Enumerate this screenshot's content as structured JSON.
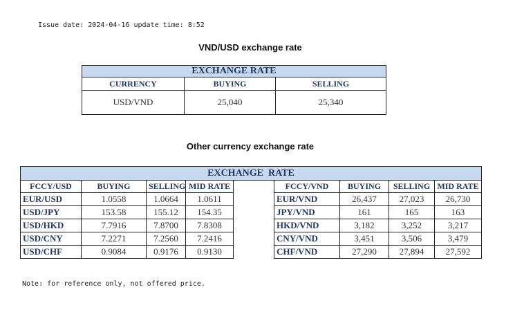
{
  "issue_line": "Issue date: 2024-04-16 update time: 8:52",
  "vnd_usd": {
    "title": "VND/USD exchange rate",
    "header": "EXCHANGE RATE",
    "columns": [
      "CURRENCY",
      "BUYING",
      "SELLING"
    ],
    "rows": [
      [
        "USD/VND",
        "25,040",
        "25,340"
      ]
    ]
  },
  "other": {
    "title": "Other currency exchange rate",
    "header": "EXCHANGE  RATE",
    "left_columns": [
      "FCCY/USD",
      "BUYING",
      "SELLING",
      "MID RATE"
    ],
    "right_columns": [
      "FCCY/VND",
      "BUYING",
      "SELLING",
      "MID RATE"
    ],
    "left_rows": [
      [
        "EUR/USD",
        "1.0558",
        "1.0664",
        "1.0611"
      ],
      [
        "USD/JPY",
        "153.58",
        "155.12",
        "154.35"
      ],
      [
        "USD/HKD",
        "7.7916",
        "7.8700",
        "7.8308"
      ],
      [
        "USD/CNY",
        "7.2271",
        "7.2560",
        "7.2416"
      ],
      [
        "USD/CHF",
        "0.9084",
        "0.9176",
        "0.9130"
      ]
    ],
    "right_rows": [
      [
        "EUR/VND",
        "26,437",
        "27,023",
        "26,730"
      ],
      [
        "JPY/VND",
        "161",
        "165",
        "163"
      ],
      [
        "HKD/VND",
        "3,182",
        "3,252",
        "3,217"
      ],
      [
        "CNY/VND",
        "3,451",
        "3,506",
        "3,479"
      ],
      [
        "CHF/VND",
        "27,290",
        "27,894",
        "27,592"
      ]
    ]
  },
  "note": "Note: for reference only, not offered price."
}
